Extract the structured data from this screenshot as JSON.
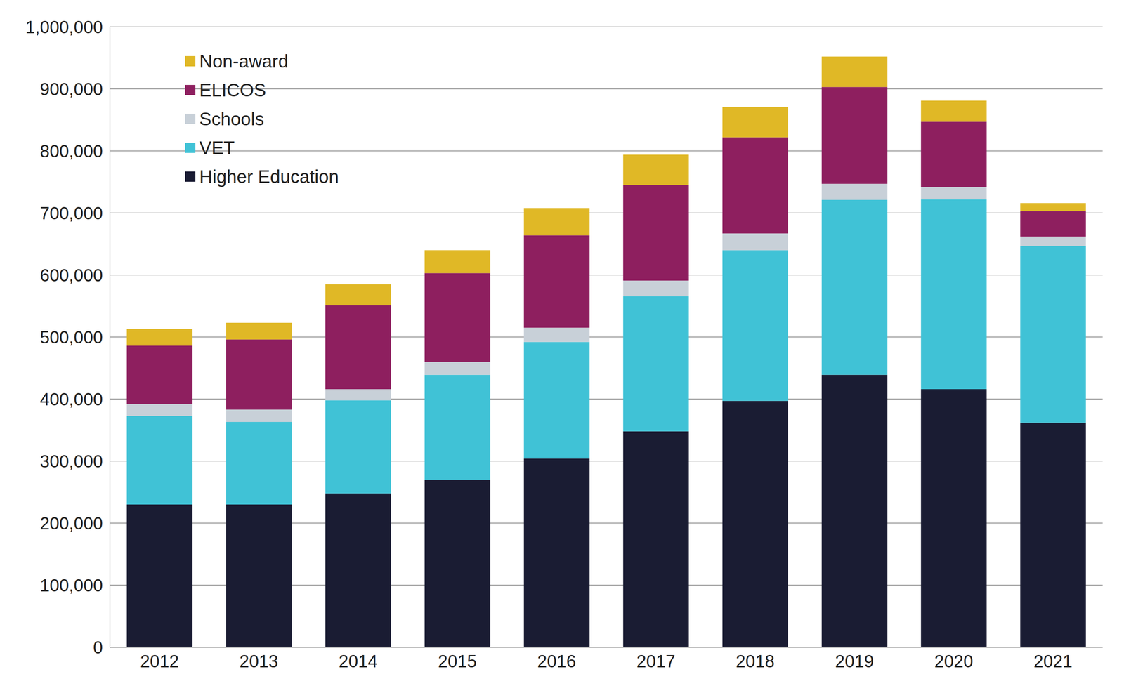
{
  "chart_data": {
    "type": "bar",
    "stacked": true,
    "grid": true,
    "legend": "upper left",
    "categories": [
      "2012",
      "2013",
      "2014",
      "2015",
      "2016",
      "2017",
      "2018",
      "2019",
      "2020",
      "2021"
    ],
    "series": [
      {
        "name": "Higher Education",
        "color": "#1a1c33",
        "values": [
          230000,
          230000,
          248000,
          270000,
          304000,
          348000,
          397000,
          439000,
          416000,
          362000
        ]
      },
      {
        "name": "VET",
        "color": "#40c2d6",
        "values": [
          143000,
          133000,
          150000,
          169000,
          188000,
          218000,
          243000,
          282000,
          306000,
          285000
        ]
      },
      {
        "name": "Schools",
        "color": "#c8d0d8",
        "values": [
          19000,
          20000,
          18000,
          21000,
          23000,
          25000,
          27000,
          26000,
          20000,
          15000
        ]
      },
      {
        "name": "ELICOS",
        "color": "#8e1f5f",
        "values": [
          94000,
          113000,
          135000,
          143000,
          149000,
          154000,
          155000,
          156000,
          105000,
          41000
        ]
      },
      {
        "name": "Non-award",
        "color": "#e0b826",
        "values": [
          27000,
          27000,
          34000,
          37000,
          44000,
          49000,
          49000,
          49000,
          34000,
          13000
        ]
      }
    ],
    "ylim": [
      0,
      1000000
    ],
    "yticks": [
      0,
      {
        "value": 100000,
        "label": "100,000"
      },
      {
        "value": 200000,
        "label": "200,000"
      },
      {
        "value": 300000,
        "label": "300,000"
      },
      {
        "value": 400000,
        "label": "400,000"
      },
      {
        "value": 500000,
        "label": "500,000"
      },
      {
        "value": 600000,
        "label": "600,000"
      },
      {
        "value": 700000,
        "label": "700,000"
      },
      {
        "value": 800000,
        "label": "800,000"
      },
      {
        "value": 900000,
        "label": "900,000"
      },
      {
        "value": 1000000,
        "label": "1,000,000"
      }
    ]
  }
}
